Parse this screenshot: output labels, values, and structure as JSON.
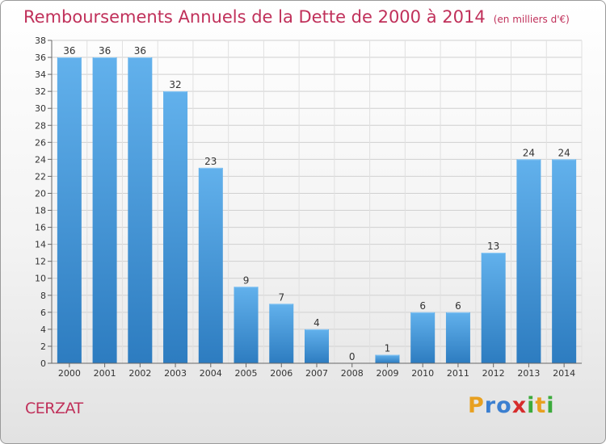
{
  "title": "Remboursements Annuels de la Dette de 2000 à 2014",
  "unit": "(en milliers d'€)",
  "commune": "CERZAT",
  "brand": {
    "letters": [
      "P",
      "r",
      "o",
      "x",
      "i",
      "t",
      "i"
    ],
    "colors": [
      "#e8a020",
      "#3b7fd0",
      "#3b7fd0",
      "#d62c2c",
      "#3cab3c",
      "#e8a020",
      "#3cab3c"
    ]
  },
  "colors": {
    "bar": "#4f9fde",
    "bar_light": "#62b1ec",
    "bar_dark": "#2d7cc0",
    "title": "#c0305a",
    "axis": "#666666"
  },
  "chart_data": {
    "type": "bar",
    "categories": [
      "2000",
      "2001",
      "2002",
      "2003",
      "2004",
      "2005",
      "2006",
      "2007",
      "2008",
      "2009",
      "2010",
      "2011",
      "2012",
      "2013",
      "2014"
    ],
    "values": [
      36,
      36,
      36,
      32,
      23,
      9,
      7,
      4,
      0,
      1,
      6,
      6,
      13,
      24,
      24
    ],
    "ylim": [
      0,
      38
    ],
    "yticks": [
      0,
      2,
      4,
      6,
      8,
      10,
      12,
      14,
      16,
      18,
      20,
      22,
      24,
      26,
      28,
      30,
      32,
      34,
      36,
      38
    ],
    "grid": true,
    "data_labels": true
  }
}
